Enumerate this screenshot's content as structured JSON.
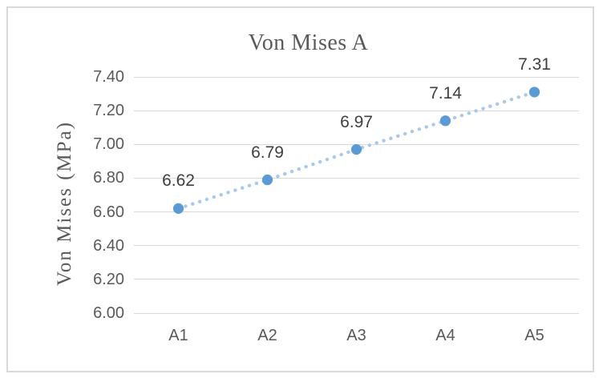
{
  "chart": {
    "title": "Von Mises A",
    "y_axis_title": "Von Mises (MPa)"
  },
  "chart_data": {
    "type": "line",
    "title": "Von Mises A",
    "xlabel": "",
    "ylabel": "Von Mises (MPa)",
    "categories": [
      "A1",
      "A2",
      "A3",
      "A4",
      "A5"
    ],
    "series": [
      {
        "name": "Von Mises A",
        "values": [
          6.62,
          6.79,
          6.97,
          7.14,
          7.31
        ],
        "data_labels": [
          "6.62",
          "6.79",
          "6.97",
          "7.14",
          "7.31"
        ]
      }
    ],
    "ylim": [
      6.0,
      7.4
    ],
    "ytick_step": 0.2,
    "ytick_labels": [
      "6.00",
      "6.20",
      "6.40",
      "6.60",
      "6.80",
      "7.00",
      "7.20",
      "7.40"
    ],
    "grid": true,
    "legend": "none",
    "line_style": "dotted",
    "marker": "circle",
    "colors": {
      "marker": "#5B9BD5",
      "line": "#A9C9EA",
      "gridline": "#D9D9D9",
      "axis_text": "#595959",
      "data_label_text": "#3F3F3F",
      "border": "#D9D9D9",
      "background": "#FFFFFF"
    }
  }
}
